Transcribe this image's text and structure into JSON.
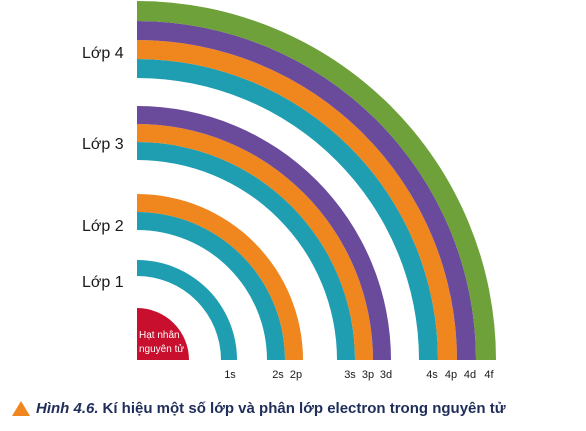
{
  "shells": [
    {
      "label": "Lớp 1"
    },
    {
      "label": "Lớp 2"
    },
    {
      "label": "Lớp 3"
    },
    {
      "label": "Lớp 4"
    }
  ],
  "nucleus": {
    "line1": "Hạt nhân",
    "line2": "nguyên tử"
  },
  "subshells": [
    {
      "label": "1s",
      "shell": 1,
      "color": "#1e9eb0"
    },
    {
      "label": "2s",
      "shell": 2,
      "color": "#1e9eb0"
    },
    {
      "label": "2p",
      "shell": 2,
      "color": "#f0861e"
    },
    {
      "label": "3s",
      "shell": 3,
      "color": "#1e9eb0"
    },
    {
      "label": "3p",
      "shell": 3,
      "color": "#f0861e"
    },
    {
      "label": "3d",
      "shell": 3,
      "color": "#6a4a9a"
    },
    {
      "label": "4s",
      "shell": 4,
      "color": "#1e9eb0"
    },
    {
      "label": "4p",
      "shell": 4,
      "color": "#f0861e"
    },
    {
      "label": "4d",
      "shell": 4,
      "color": "#6a4a9a"
    },
    {
      "label": "4f",
      "shell": 4,
      "color": "#6fa13a"
    }
  ],
  "colors": {
    "nucleus": "#c8102e",
    "caption_text": "#1f2d5a",
    "caption_icon": "#f0861e"
  },
  "caption": {
    "icon": "triangle-icon",
    "label": "Hình 4.6.",
    "text": "Kí hiệu một số lớp và phân lớp electron trong nguyên tử"
  }
}
